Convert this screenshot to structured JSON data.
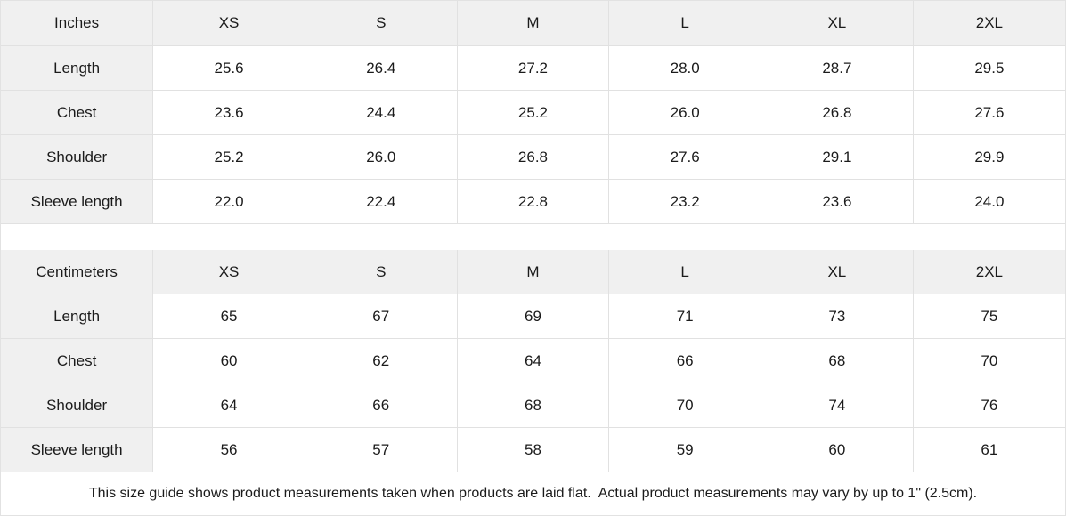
{
  "colors": {
    "header_bg": "#f0f0f0",
    "label_column_bg": "#f0f0f0",
    "grid_border": "#e1e1e1",
    "cell_bg": "#ffffff",
    "text": "#1b1b1b"
  },
  "tables": [
    {
      "unit_label": "Inches",
      "sizes": [
        "XS",
        "S",
        "M",
        "L",
        "XL",
        "2XL"
      ],
      "rows": [
        {
          "label": "Length",
          "values": [
            "25.6",
            "26.4",
            "27.2",
            "28.0",
            "28.7",
            "29.5"
          ]
        },
        {
          "label": "Chest",
          "values": [
            "23.6",
            "24.4",
            "25.2",
            "26.0",
            "26.8",
            "27.6"
          ]
        },
        {
          "label": "Shoulder",
          "values": [
            "25.2",
            "26.0",
            "26.8",
            "27.6",
            "29.1",
            "29.9"
          ]
        },
        {
          "label": "Sleeve length",
          "values": [
            "22.0",
            "22.4",
            "22.8",
            "23.2",
            "23.6",
            "24.0"
          ]
        }
      ]
    },
    {
      "unit_label": "Centimeters",
      "sizes": [
        "XS",
        "S",
        "M",
        "L",
        "XL",
        "2XL"
      ],
      "rows": [
        {
          "label": "Length",
          "values": [
            "65",
            "67",
            "69",
            "71",
            "73",
            "75"
          ]
        },
        {
          "label": "Chest",
          "values": [
            "60",
            "62",
            "64",
            "66",
            "68",
            "70"
          ]
        },
        {
          "label": "Shoulder",
          "values": [
            "64",
            "66",
            "68",
            "70",
            "74",
            "76"
          ]
        },
        {
          "label": "Sleeve length",
          "values": [
            "56",
            "57",
            "58",
            "59",
            "60",
            "61"
          ]
        }
      ]
    }
  ],
  "footer": {
    "note": "This size guide shows product measurements taken when products are laid flat.  Actual product measurements may vary by up to 1\" (2.5cm)."
  }
}
